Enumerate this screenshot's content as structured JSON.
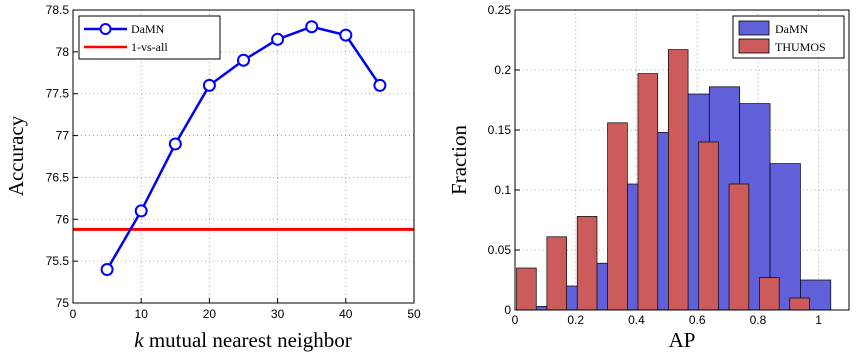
{
  "chart_data": [
    {
      "type": "line",
      "title": "",
      "xlabel": "k mutual nearest neighbor",
      "xlabel_var": "k",
      "xlabel_rest": " mutual nearest neighbor",
      "ylabel": "Accuracy",
      "xlim": [
        0,
        50
      ],
      "ylim": [
        75,
        78.5
      ],
      "xticks": [
        "0",
        "10",
        "20",
        "30",
        "40",
        "50"
      ],
      "yticks": [
        "75",
        "75.5",
        "76",
        "76.5",
        "77",
        "77.5",
        "78",
        "78.5"
      ],
      "grid": true,
      "legend_position": "top-left",
      "series": [
        {
          "name": "DaMN",
          "color": "#0000ff",
          "marker": "circle",
          "x": [
            5,
            10,
            15,
            20,
            25,
            30,
            35,
            40,
            45
          ],
          "y": [
            75.4,
            76.1,
            76.9,
            77.6,
            77.9,
            78.15,
            78.3,
            78.2,
            77.6
          ]
        },
        {
          "name": "1-vs-all",
          "color": "#ff0000",
          "x": [
            0,
            50
          ],
          "y": [
            75.88,
            75.88
          ]
        }
      ]
    },
    {
      "type": "bar",
      "title": "",
      "xlabel": "AP",
      "ylabel": "Fraction",
      "xlim": [
        0,
        1.1
      ],
      "ylim": [
        0,
        0.25
      ],
      "xticks": [
        "0",
        "0.2",
        "0.4",
        "0.6",
        "0.8",
        "1"
      ],
      "yticks": [
        "0",
        "0.05",
        "0.1",
        "0.15",
        "0.2",
        "0.25"
      ],
      "grid": true,
      "legend_position": "top-right",
      "x": [
        0.05,
        0.15,
        0.25,
        0.35,
        0.45,
        0.55,
        0.65,
        0.75,
        0.85,
        0.95
      ],
      "series": [
        {
          "name": "DaMN",
          "color": "#6060d8",
          "values": [
            0.003,
            0.02,
            0.039,
            0.105,
            0.148,
            0.18,
            0.186,
            0.172,
            0.122,
            0.025
          ]
        },
        {
          "name": "THUMOS",
          "color": "#cc5c5c",
          "values": [
            0.035,
            0.061,
            0.078,
            0.156,
            0.197,
            0.217,
            0.14,
            0.105,
            0.027,
            0.01
          ]
        }
      ]
    }
  ]
}
